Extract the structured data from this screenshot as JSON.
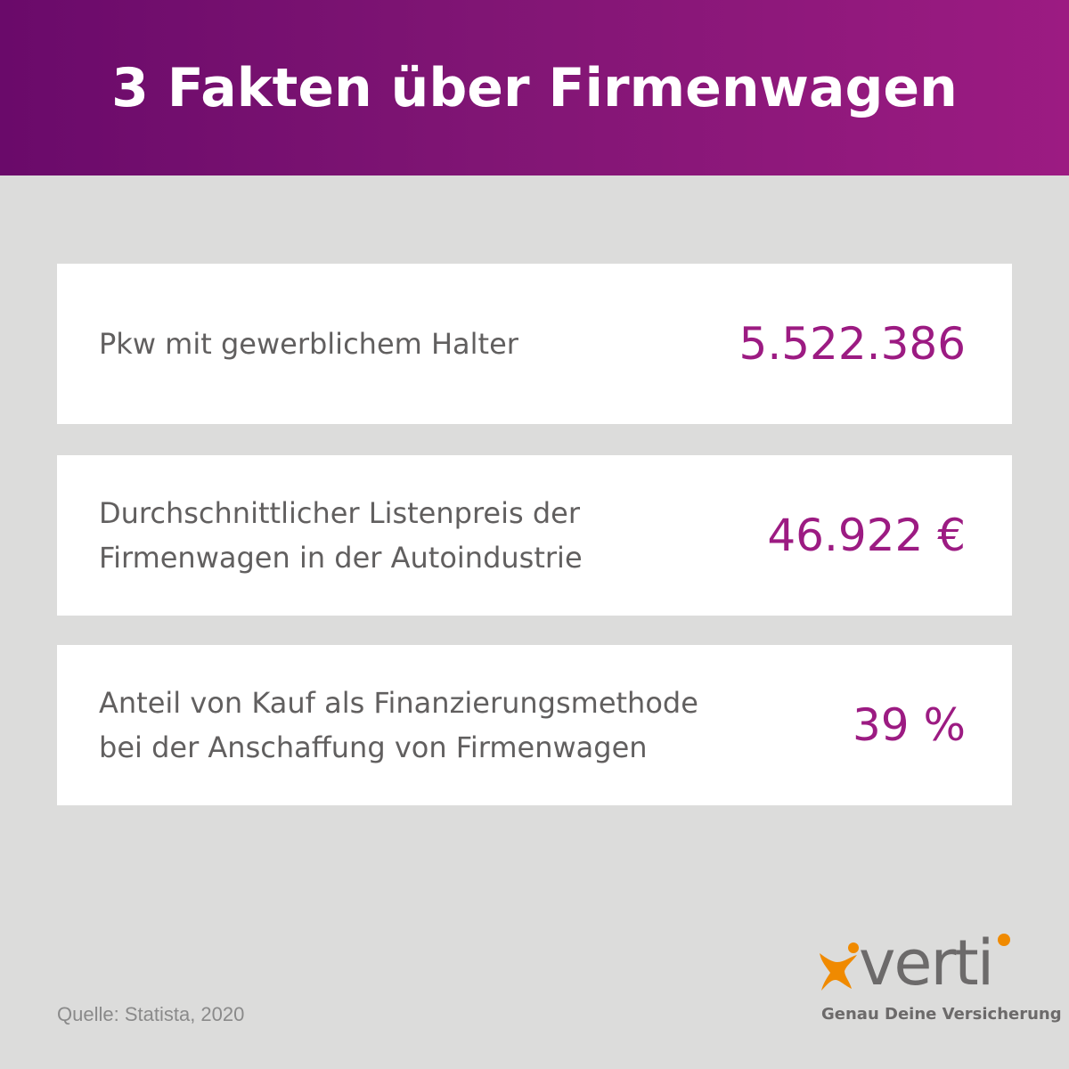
{
  "header": {
    "title": "3 Fakten über Firmenwagen"
  },
  "facts": [
    {
      "label": "Pkw mit gewerblichem Halter",
      "value": "5.522.386"
    },
    {
      "label": "Durchschnittlicher Listenpreis der\nFirmenwagen in der Autoindustrie",
      "value": "46.922 €"
    },
    {
      "label": "Anteil von Kauf als Finanzierungsmethode\nbei der Anschaffung von Firmenwagen",
      "value": "39 %"
    }
  ],
  "footer": {
    "source": "Quelle: Statista, 2020",
    "logo_text": "verti",
    "tagline": "Genau Deine Versicherung"
  },
  "colors": {
    "brand_purple": "#9c1b82",
    "header_gradient_start": "#6a0a6a",
    "background": "#dcdcdb",
    "text_gray": "#615f5f",
    "logo_orange": "#f08a00"
  },
  "icons": {
    "logo_mark": "verti-person-mark-icon"
  }
}
